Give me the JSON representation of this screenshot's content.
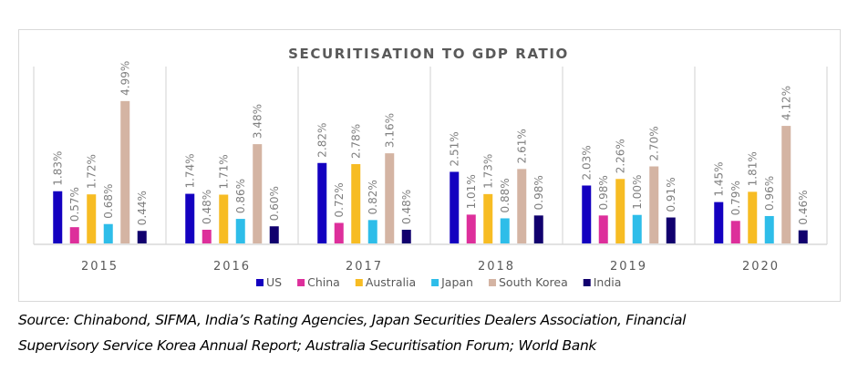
{
  "chart_data": {
    "type": "bar",
    "title": "SECURITISATION TO GDP RATIO",
    "categories": [
      "2015",
      "2016",
      "2017",
      "2018",
      "2019",
      "2020"
    ],
    "series": [
      {
        "name": "US",
        "color": "#1400c0",
        "values": [
          1.83,
          1.74,
          2.82,
          2.51,
          2.03,
          1.45
        ],
        "labels": [
          "1.83%",
          "1.74%",
          "2.82%",
          "2.51%",
          "2.03%",
          "1.45%"
        ]
      },
      {
        "name": "China",
        "color": "#dd2f9b",
        "values": [
          0.57,
          0.48,
          0.72,
          1.01,
          0.98,
          0.79
        ],
        "labels": [
          "0.57%",
          "0.48%",
          "0.72%",
          "1.01%",
          "0.98%",
          "0.79%"
        ]
      },
      {
        "name": "Australia",
        "color": "#f7bc23",
        "values": [
          1.72,
          1.71,
          2.78,
          1.73,
          2.26,
          1.81
        ],
        "labels": [
          "1.72%",
          "1.71%",
          "2.78%",
          "1.73%",
          "2.26%",
          "1.81%"
        ]
      },
      {
        "name": "Japan",
        "color": "#2ebde9",
        "values": [
          0.68,
          0.86,
          0.82,
          0.88,
          1.0,
          0.96
        ],
        "labels": [
          "0.68%",
          "0.86%",
          "0.82%",
          "0.88%",
          "1.00%",
          "0.96%"
        ]
      },
      {
        "name": "South Korea",
        "color": "#d4b4a3",
        "values": [
          4.99,
          3.48,
          3.16,
          2.61,
          2.7,
          4.12
        ],
        "labels": [
          "4.99%",
          "3.48%",
          "3.16%",
          "2.61%",
          "2.70%",
          "4.12%"
        ]
      },
      {
        "name": "India",
        "color": "#11006e",
        "values": [
          0.44,
          0.6,
          0.48,
          0.98,
          0.91,
          0.46
        ],
        "labels": [
          "0.44%",
          "0.60%",
          "0.48%",
          "0.98%",
          "0.91%",
          "0.46%"
        ]
      }
    ],
    "xlabel": "",
    "ylabel": "",
    "ylim": [
      0,
      6.2
    ],
    "grid": false,
    "group_separators": true,
    "legend": "bottom-center",
    "data_labels": "rotated-vertical"
  },
  "source": {
    "line1": "Source: Chinabond, SIFMA, India’s Rating Agencies, Japan Securities Dealers Association, Financial",
    "line2": "Supervisory Service Korea Annual Report; Australia Securitisation Forum; World Bank"
  }
}
